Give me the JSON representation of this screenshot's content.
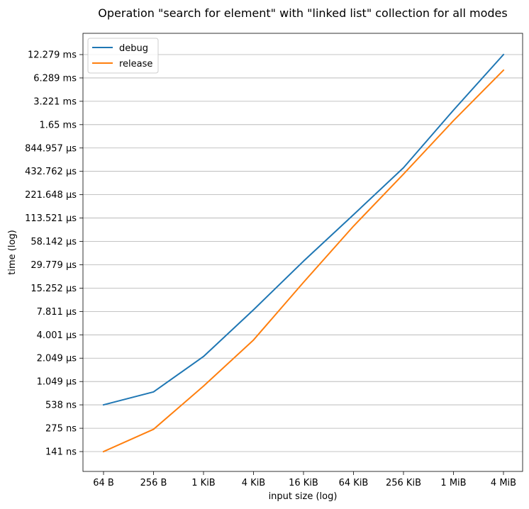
{
  "chart_data": {
    "type": "line",
    "title": "Operation \"search for element\" with \"linked list\" collection for all modes",
    "xlabel": "input size (log)",
    "ylabel": "time (log)",
    "x_scale": "log",
    "y_scale": "log",
    "x_ticks": [
      "64 B",
      "256 B",
      "1 KiB",
      "4 KiB",
      "16 KiB",
      "64 KiB",
      "256 KiB",
      "1 MiB",
      "4 MiB"
    ],
    "y_ticks": [
      "141 ns",
      "275 ns",
      "538 ns",
      "1.049 µs",
      "2.049 µs",
      "4.001 µs",
      "7.811 µs",
      "15.252 µs",
      "29.779 µs",
      "58.142 µs",
      "113.521 µs",
      "221.648 µs",
      "432.762 µs",
      "844.957 µs",
      "1.65 ms",
      "3.221 ms",
      "6.289 ms",
      "12.279 ms"
    ],
    "y_tick_values_ns": [
      141,
      275,
      538,
      1049,
      2049,
      4001,
      7811,
      15252,
      29779,
      58142,
      113521,
      221648,
      432762,
      844957,
      1650000,
      3221000,
      6289000,
      12279000
    ],
    "grid": "horizontal",
    "legend_position": "top-left",
    "series": [
      {
        "name": "debug",
        "color": "#1f77b4",
        "values_ns": [
          538,
          780,
          2150,
          8200,
          33000,
          125000,
          480000,
          2500000,
          12279000
        ]
      },
      {
        "name": "release",
        "color": "#ff7f0e",
        "values_ns": [
          141,
          267,
          920,
          3450,
          18000,
          90000,
          400000,
          1850000,
          7850000
        ]
      }
    ]
  }
}
